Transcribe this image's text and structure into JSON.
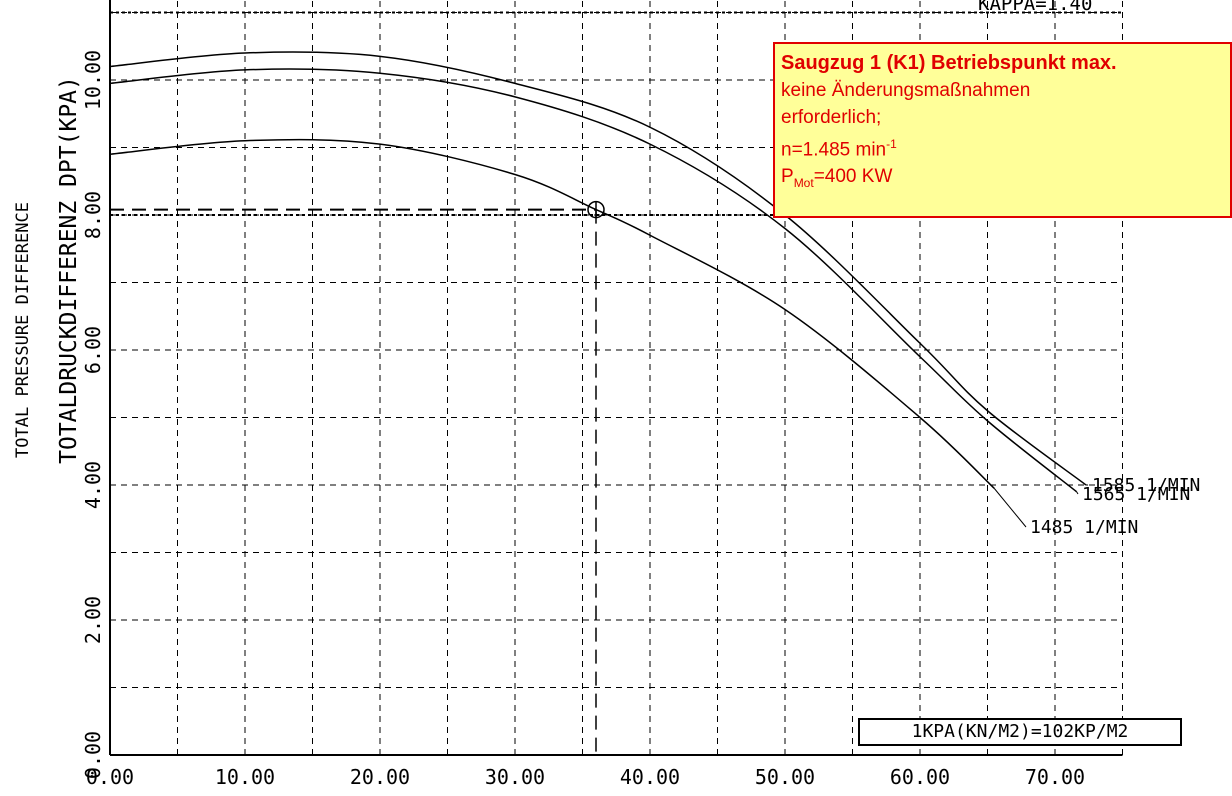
{
  "chart_data": {
    "type": "line",
    "ylabel_en": "TOTAL PRESSURE DIFFERENCE",
    "ylabel_de": "TOTALDRUCKDIFFERENZ DPT(KPA)",
    "xlim": [
      0,
      75
    ],
    "ylim": [
      0,
      11
    ],
    "grid": true,
    "x_ticks": [
      "0.00",
      "10.00",
      "20.00",
      "30.00",
      "40.00",
      "50.00",
      "60.00",
      "70.00"
    ],
    "y_ticks": [
      "0.00",
      "2.00",
      "4.00",
      "6.00",
      "8.00",
      "10.00"
    ],
    "top_label": "KAPPA=1.40",
    "series": [
      {
        "name": "1585 1/MIN",
        "x": [
          0,
          10,
          20,
          30,
          40,
          50,
          60,
          65,
          72.3
        ],
        "y": [
          10.2,
          10.4,
          10.35,
          9.95,
          9.3,
          8.0,
          6.1,
          5.1,
          4.0
        ]
      },
      {
        "name": "1565 1/MIN",
        "x": [
          0,
          10,
          20,
          30,
          40,
          50,
          60,
          65,
          71.6
        ],
        "y": [
          9.95,
          10.15,
          10.1,
          9.75,
          9.05,
          7.8,
          5.9,
          4.95,
          3.9
        ]
      },
      {
        "name": "1485 1/MIN",
        "x": [
          0,
          10,
          20,
          30,
          36,
          40,
          50,
          60,
          65.5
        ],
        "y": [
          8.9,
          9.1,
          9.05,
          8.6,
          8.08,
          7.7,
          6.6,
          5.0,
          3.95
        ]
      }
    ],
    "operating_point": {
      "x": 36,
      "y": 8.08
    },
    "unit_note": "1KPA(KN/M2)=102KP/M2",
    "colors": {
      "lines": "#000000",
      "annotation_bg": "#ffff99",
      "annotation_text": "#e00000"
    }
  },
  "annotation": {
    "title": "Saugzug 1 (K1) Betriebspunkt max.",
    "line1": "keine Änderungsmaßnahmen",
    "line2": "erforderlich;",
    "speed_prefix": "n=1.485 min",
    "speed_sup": "-1",
    "power_prefix": "P",
    "power_sub": "Mot",
    "power_value": "=400 KW"
  }
}
